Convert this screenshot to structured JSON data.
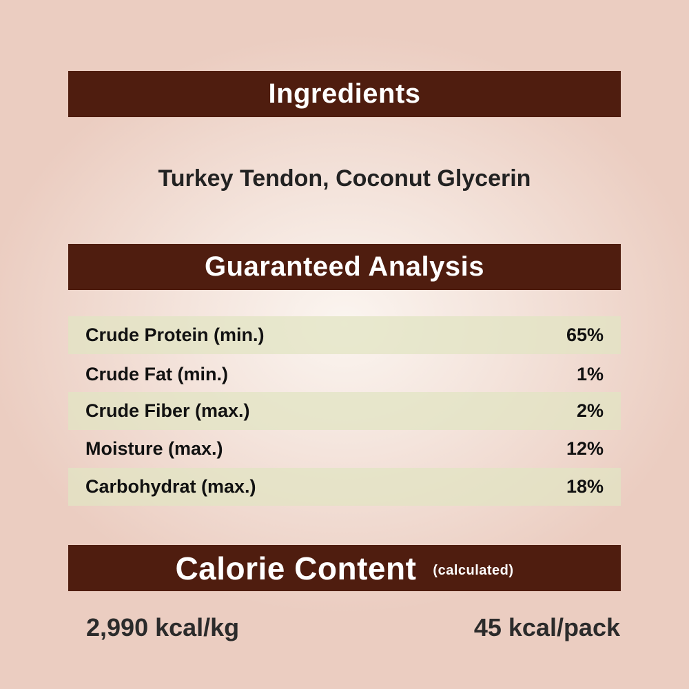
{
  "colors": {
    "banner": "#4f1d0f",
    "row_shade": "#e1e4c3",
    "background": "#f4e4dc"
  },
  "ingredients": {
    "title": "Ingredients",
    "text": "Turkey Tendon, Coconut Glycerin"
  },
  "analysis": {
    "title": "Guaranteed Analysis",
    "rows": [
      {
        "label": "Crude Protein (min.)",
        "value": "65%"
      },
      {
        "label": "Crude Fat (min.)",
        "value": "1%"
      },
      {
        "label": "Crude Fiber (max.)",
        "value": "2%"
      },
      {
        "label": "Moisture (max.)",
        "value": "12%"
      },
      {
        "label": "Carbohydrat (max.)",
        "value": "18%"
      }
    ]
  },
  "calorie": {
    "title": "Calorie Content",
    "subtitle": "(calculated)",
    "per_kg": "2,990 kcal/kg",
    "per_pack": "45 kcal/pack"
  }
}
